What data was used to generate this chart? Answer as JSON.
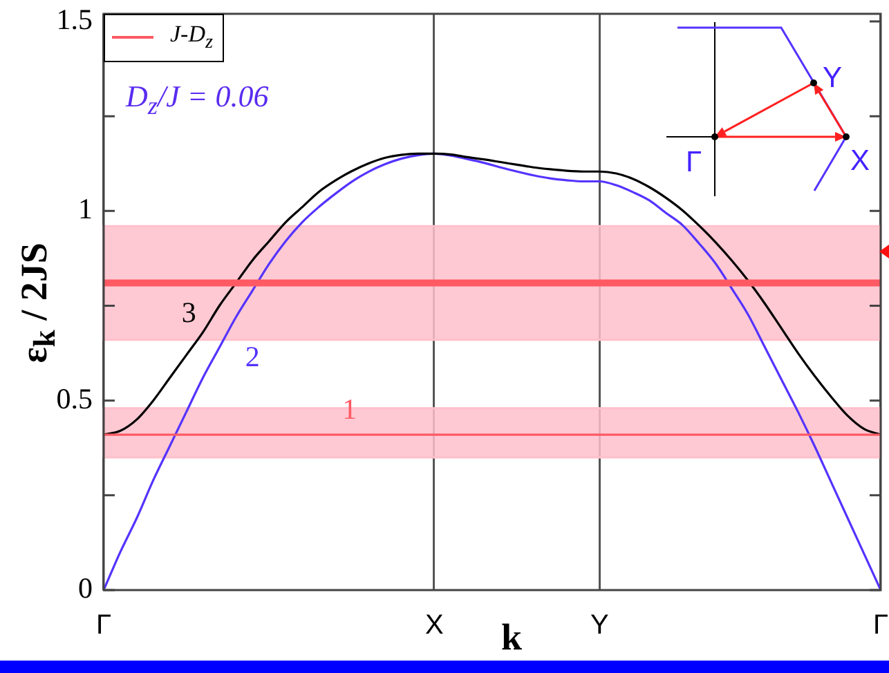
{
  "chart_data": {
    "type": "line",
    "xlabel": "k",
    "ylabel": "ε$_{k}$ / 2JS",
    "categories": [
      "Γ",
      null,
      null,
      null,
      null,
      null,
      null,
      null,
      null,
      null,
      null,
      null,
      null,
      null,
      null,
      null,
      null,
      null,
      null,
      null,
      "X",
      null,
      null,
      null,
      null,
      null,
      null,
      null,
      null,
      null,
      "Y",
      null,
      null,
      null,
      null,
      null,
      null,
      null,
      null,
      null,
      null,
      null,
      null,
      null,
      null,
      null,
      null,
      "Γ"
    ],
    "ylim": [
      0,
      1.52
    ],
    "yticks": [
      0,
      {
        "value": 0.25,
        "label": null
      },
      0.5,
      {
        "value": 0.75,
        "label": null
      },
      1,
      {
        "value": 1.25,
        "label": null
      },
      1.5
    ],
    "grid": "x",
    "legend": "top left",
    "series": [
      {
        "name": "J-D$_{z}$",
        "color": "#ff5a64",
        "values": [
          0.41,
          0.41,
          0.41,
          0.41,
          0.41,
          0.41,
          0.41,
          0.41,
          0.41,
          0.41,
          0.41,
          0.41,
          0.41,
          0.41,
          0.41,
          0.41,
          0.41,
          0.41,
          0.41,
          0.41,
          0.41,
          0.41,
          0.41,
          0.41,
          0.41,
          0.41,
          0.41,
          0.41,
          0.41,
          0.41,
          0.41,
          0.41,
          0.41,
          0.41,
          0.41,
          0.41,
          0.41,
          0.41,
          0.41,
          0.41,
          0.41,
          0.41,
          0.41,
          0.41,
          0.41,
          0.41,
          0.41,
          0.41
        ]
      },
      {
        "color": "#000000",
        "values": [
          0.41,
          0.42,
          0.45,
          0.5,
          0.56,
          0.62,
          0.68,
          0.75,
          0.81,
          0.87,
          0.92,
          0.97,
          1.01,
          1.05,
          1.08,
          1.105,
          1.125,
          1.14,
          1.148,
          1.151,
          1.151,
          1.149,
          1.142,
          1.136,
          1.129,
          1.122,
          1.115,
          1.11,
          1.106,
          1.104,
          1.104,
          1.099,
          1.085,
          1.063,
          1.035,
          1.002,
          0.962,
          0.918,
          0.869,
          0.815,
          0.755,
          0.69,
          0.625,
          0.565,
          0.51,
          0.46,
          0.425,
          0.41
        ]
      },
      {
        "color": "#5533ff",
        "values": [
          0,
          0.1,
          0.19,
          0.29,
          0.38,
          0.47,
          0.56,
          0.64,
          0.72,
          0.79,
          0.86,
          0.92,
          0.97,
          1.01,
          1.045,
          1.077,
          1.103,
          1.123,
          1.138,
          1.147,
          1.151,
          1.146,
          1.137,
          1.127,
          1.115,
          1.104,
          1.094,
          1.086,
          1.081,
          1.078,
          1.078,
          1.068,
          1.05,
          1.028,
          0.995,
          0.963,
          0.915,
          0.862,
          0.795,
          0.725,
          0.64,
          0.555,
          0.47,
          0.38,
          0.285,
          0.19,
          0.095,
          0
        ]
      }
    ],
    "ref_lines": [
      {
        "axis": "y",
        "value": 0.81,
        "color": "#ff5a64"
      }
    ],
    "bands": [
      {
        "axis": "y",
        "from": 0.35,
        "to": 0.48,
        "color": "#ffc0cb"
      },
      {
        "axis": "y",
        "from": 0.66,
        "to": 0.96,
        "color": "#ffc0cb"
      }
    ],
    "annotations": [
      "D$_{z}$/J = 0.06",
      "1",
      "2",
      "3"
    ]
  }
}
